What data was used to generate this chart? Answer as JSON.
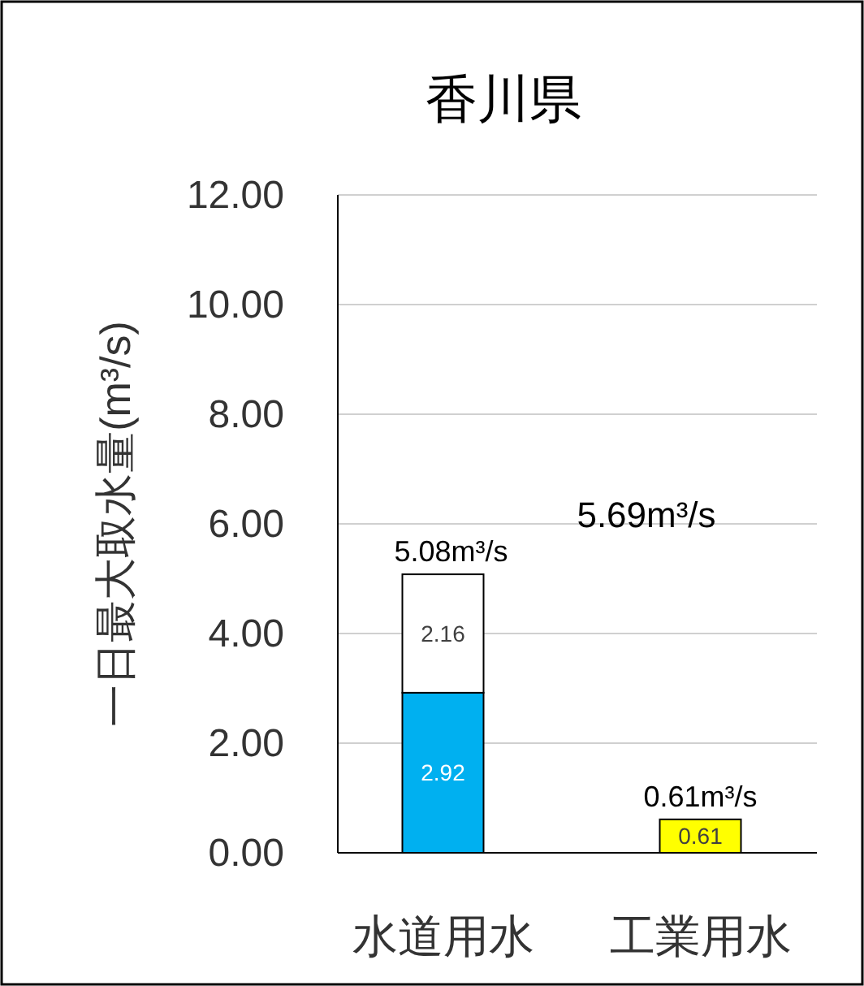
{
  "chart_data": {
    "type": "bar",
    "title": "香川県",
    "ylabel": "一日最大取水量(m³/s)",
    "categories": [
      "水道用水",
      "工業用水"
    ],
    "stacked": true,
    "series": [
      {
        "color": "#00b0f0",
        "values": [
          2.92,
          null
        ]
      },
      {
        "color": "#ffffff",
        "values": [
          2.16,
          null
        ]
      },
      {
        "color": "#ffff00",
        "values": [
          null,
          0.61
        ]
      }
    ],
    "data_labels": true,
    "totals": [
      "5.08m³/s",
      "0.61m³/s"
    ],
    "annotations": [
      "5.69m³/s"
    ],
    "ylim": [
      0,
      12
    ],
    "yticks": [
      {
        "value": 0,
        "label": "0.00"
      },
      {
        "value": 2,
        "label": "2.00"
      },
      {
        "value": 4,
        "label": "4.00"
      },
      {
        "value": 6,
        "label": "6.00"
      },
      {
        "value": 8,
        "label": "8.00"
      },
      {
        "value": 10,
        "label": "10.00"
      },
      {
        "value": 12,
        "label": "12.00"
      }
    ],
    "grid": "y"
  }
}
